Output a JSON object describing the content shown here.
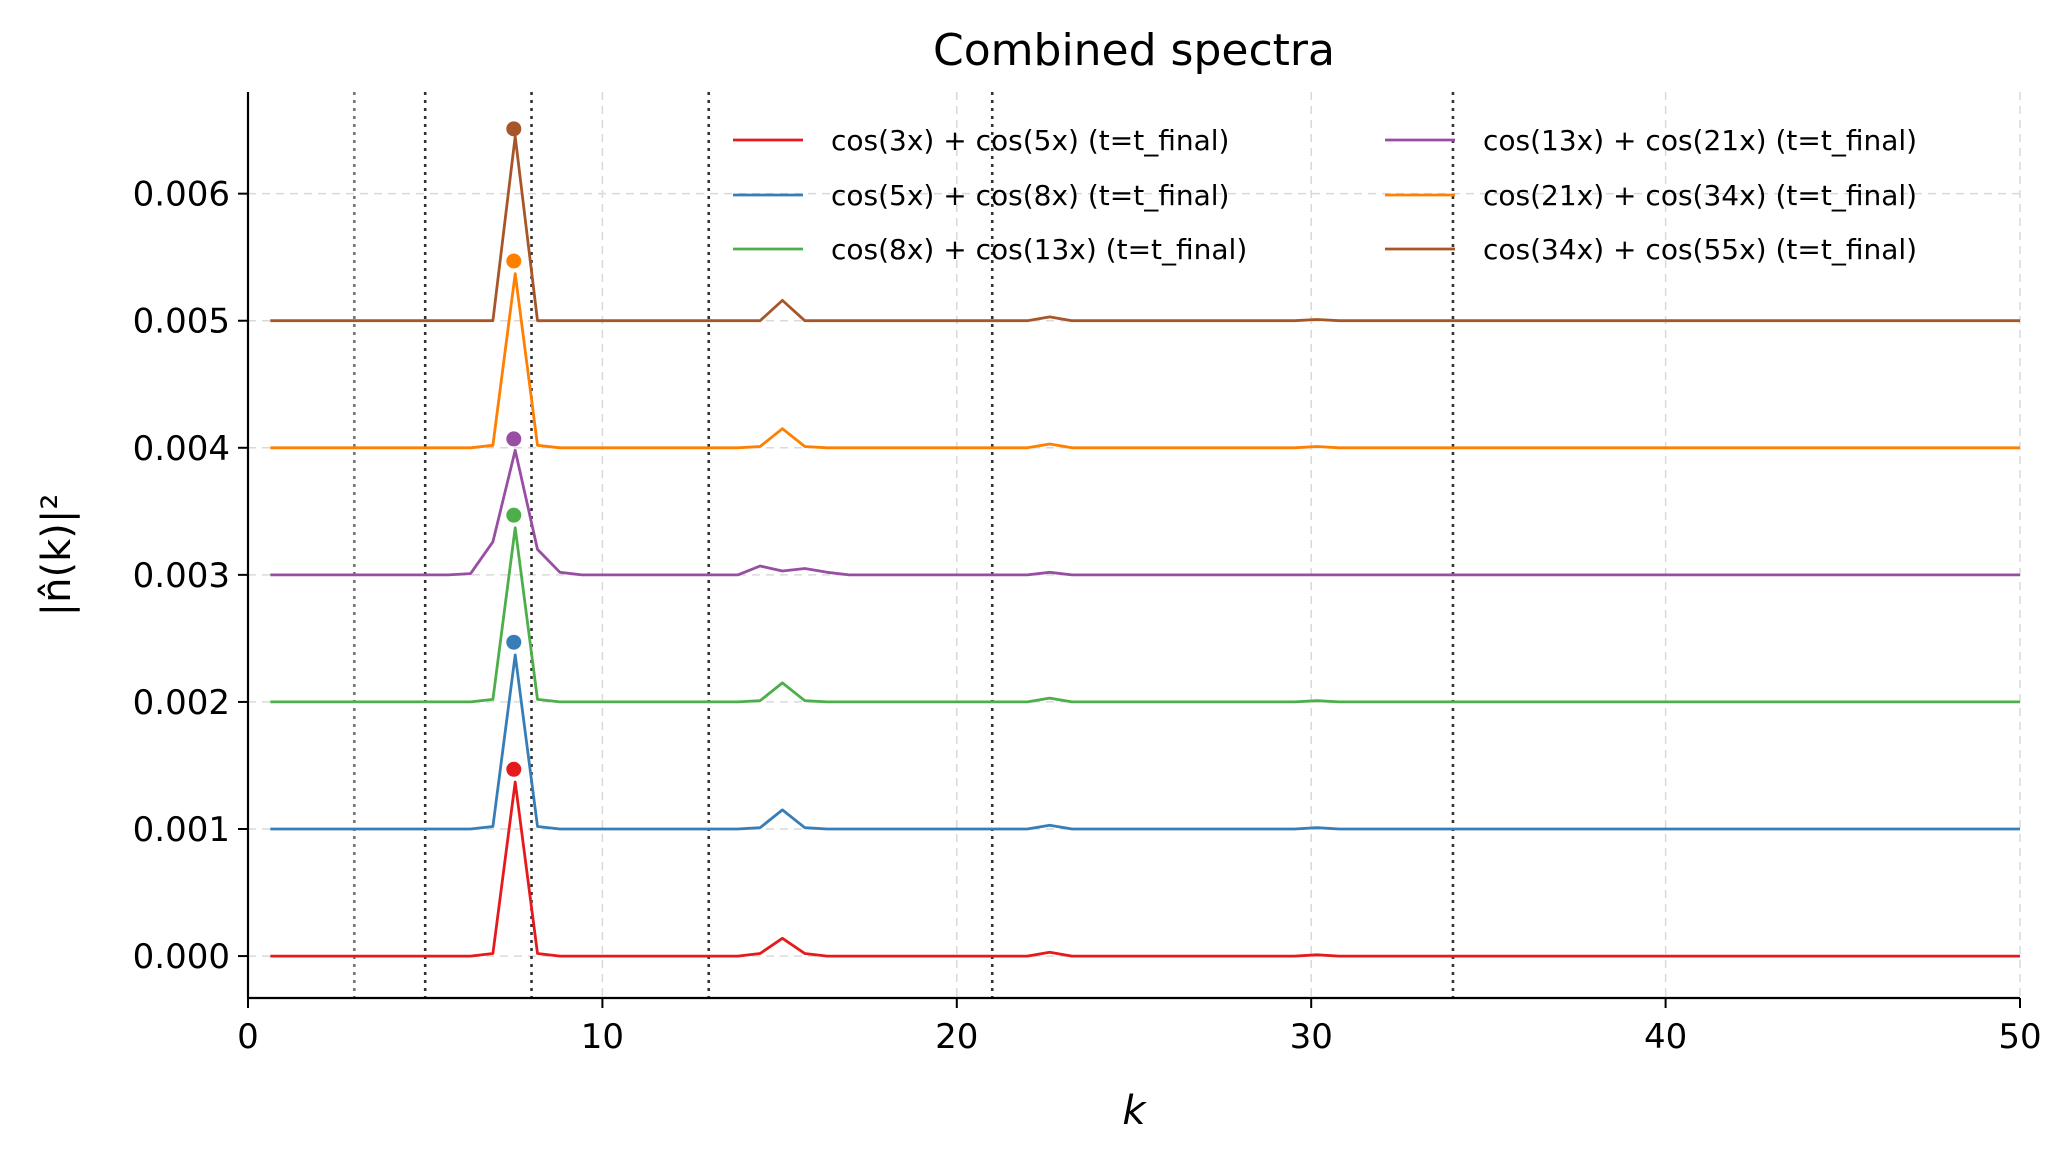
{
  "chart_data": {
    "type": "line",
    "title": "Combined spectra",
    "xlabel": "k",
    "ylabel": "|n̂(k)|²",
    "xlim": [
      0,
      50
    ],
    "ylim": [
      -0.00033,
      0.0068
    ],
    "xticks": [
      0,
      10,
      20,
      30,
      40,
      50
    ],
    "xtick_labels": [
      "0",
      "10",
      "20",
      "30",
      "40",
      "50"
    ],
    "yticks": [
      0.0,
      0.001,
      0.002,
      0.003,
      0.004,
      0.005,
      0.006
    ],
    "ytick_labels": [
      "0.000",
      "0.001",
      "0.002",
      "0.003",
      "0.004",
      "0.005",
      "0.006"
    ],
    "grid": true,
    "legend_position": "top-right",
    "vertical_markers": [
      3,
      5,
      8,
      13,
      21,
      34
    ],
    "series": [
      {
        "name": "cos(3x) + cos(5x) (t=t_final)",
        "color": "#e41a1c",
        "peak": {
          "x": 7.5,
          "y": 0.00147
        },
        "points": [
          [
            0.63,
            0.0
          ],
          [
            6.28,
            0.0
          ],
          [
            6.91,
            2e-05
          ],
          [
            7.54,
            0.00137
          ],
          [
            8.17,
            2e-05
          ],
          [
            8.8,
            0.0
          ],
          [
            13.82,
            0.0
          ],
          [
            14.45,
            2e-05
          ],
          [
            15.08,
            0.00014
          ],
          [
            15.71,
            2e-05
          ],
          [
            16.34,
            0.0
          ],
          [
            21.99,
            0.0
          ],
          [
            22.62,
            3e-05
          ],
          [
            23.25,
            0.0
          ],
          [
            29.53,
            0.0
          ],
          [
            30.16,
            1e-05
          ],
          [
            30.79,
            0.0
          ],
          [
            37.7,
            0.0
          ],
          [
            50.0,
            0.0
          ]
        ]
      },
      {
        "name": "cos(5x) + cos(8x) (t=t_final)",
        "color": "#377eb8",
        "peak": {
          "x": 7.5,
          "y": 0.00247
        },
        "points": [
          [
            0.63,
            0.001
          ],
          [
            6.28,
            0.001
          ],
          [
            6.91,
            0.00102
          ],
          [
            7.54,
            0.00237
          ],
          [
            8.17,
            0.00102
          ],
          [
            8.8,
            0.001
          ],
          [
            13.82,
            0.001
          ],
          [
            14.45,
            0.00101
          ],
          [
            15.08,
            0.00115
          ],
          [
            15.71,
            0.00101
          ],
          [
            16.34,
            0.001
          ],
          [
            21.99,
            0.001
          ],
          [
            22.62,
            0.00103
          ],
          [
            23.25,
            0.001
          ],
          [
            29.53,
            0.001
          ],
          [
            30.16,
            0.00101
          ],
          [
            30.79,
            0.001
          ],
          [
            50.0,
            0.001
          ]
        ]
      },
      {
        "name": "cos(8x) + cos(13x) (t=t_final)",
        "color": "#4daf4a",
        "peak": {
          "x": 7.5,
          "y": 0.00347
        },
        "points": [
          [
            0.63,
            0.002
          ],
          [
            6.28,
            0.002
          ],
          [
            6.91,
            0.00202
          ],
          [
            7.54,
            0.00337
          ],
          [
            8.17,
            0.00202
          ],
          [
            8.8,
            0.002
          ],
          [
            13.82,
            0.002
          ],
          [
            14.45,
            0.00201
          ],
          [
            15.08,
            0.00215
          ],
          [
            15.71,
            0.00201
          ],
          [
            16.34,
            0.002
          ],
          [
            21.99,
            0.002
          ],
          [
            22.62,
            0.00203
          ],
          [
            23.25,
            0.002
          ],
          [
            29.53,
            0.002
          ],
          [
            30.16,
            0.00201
          ],
          [
            30.79,
            0.002
          ],
          [
            50.0,
            0.002
          ]
        ]
      },
      {
        "name": "cos(13x) + cos(21x) (t=t_final)",
        "color": "#984ea3",
        "peak": {
          "x": 7.5,
          "y": 0.00407
        },
        "points": [
          [
            0.63,
            0.003
          ],
          [
            5.65,
            0.003
          ],
          [
            6.28,
            0.00301
          ],
          [
            6.91,
            0.00326
          ],
          [
            7.54,
            0.00398
          ],
          [
            8.17,
            0.0032
          ],
          [
            8.8,
            0.00302
          ],
          [
            9.42,
            0.003
          ],
          [
            13.82,
            0.003
          ],
          [
            14.45,
            0.00307
          ],
          [
            15.08,
            0.00303
          ],
          [
            15.71,
            0.00305
          ],
          [
            16.34,
            0.00302
          ],
          [
            16.96,
            0.003
          ],
          [
            21.99,
            0.003
          ],
          [
            22.62,
            0.00302
          ],
          [
            23.25,
            0.003
          ],
          [
            28.9,
            0.003
          ],
          [
            30.16,
            0.003
          ],
          [
            37.7,
            0.003
          ],
          [
            50.0,
            0.003
          ]
        ]
      },
      {
        "name": "cos(21x) + cos(34x) (t=t_final)",
        "color": "#ff7f00",
        "peak": {
          "x": 7.5,
          "y": 0.00547
        },
        "points": [
          [
            0.63,
            0.004
          ],
          [
            6.28,
            0.004
          ],
          [
            6.91,
            0.00402
          ],
          [
            7.54,
            0.00537
          ],
          [
            8.17,
            0.00402
          ],
          [
            8.8,
            0.004
          ],
          [
            13.82,
            0.004
          ],
          [
            14.45,
            0.00401
          ],
          [
            15.08,
            0.00415
          ],
          [
            15.71,
            0.00401
          ],
          [
            16.34,
            0.004
          ],
          [
            21.99,
            0.004
          ],
          [
            22.62,
            0.00403
          ],
          [
            23.25,
            0.004
          ],
          [
            29.53,
            0.004
          ],
          [
            30.16,
            0.00401
          ],
          [
            30.79,
            0.004
          ],
          [
            50.0,
            0.004
          ]
        ]
      },
      {
        "name": "cos(34x) + cos(55x) (t=t_final)",
        "color": "#a65628",
        "peak": {
          "x": 7.5,
          "y": 0.00651
        },
        "points": [
          [
            0.63,
            0.005
          ],
          [
            6.91,
            0.005
          ],
          [
            7.54,
            0.00645
          ],
          [
            8.17,
            0.005
          ],
          [
            14.45,
            0.005
          ],
          [
            15.08,
            0.00516
          ],
          [
            15.71,
            0.005
          ],
          [
            21.99,
            0.005
          ],
          [
            22.62,
            0.00503
          ],
          [
            23.25,
            0.005
          ],
          [
            29.53,
            0.005
          ],
          [
            30.16,
            0.00501
          ],
          [
            30.79,
            0.005
          ],
          [
            37.7,
            0.005
          ],
          [
            50.0,
            0.005
          ]
        ]
      }
    ]
  }
}
